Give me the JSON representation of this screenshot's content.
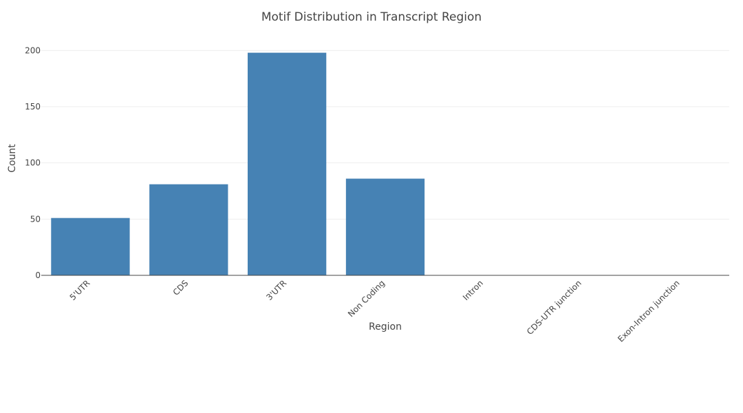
{
  "chart_data": {
    "type": "bar",
    "title": "Motif Distribution in Transcript Region",
    "xlabel": "Region",
    "ylabel": "Count",
    "categories": [
      "5'UTR",
      "CDS",
      "3'UTR",
      "Non Coding",
      "Intron",
      "CDS-UTR junction",
      "Exon-Intron junction"
    ],
    "values": [
      51,
      81,
      198,
      86,
      0,
      0,
      0
    ],
    "ylim": [
      0,
      210
    ],
    "yticks": [
      0,
      50,
      100,
      150,
      200
    ],
    "grid": true,
    "legend": "none",
    "bar_color": "#4682b4"
  }
}
